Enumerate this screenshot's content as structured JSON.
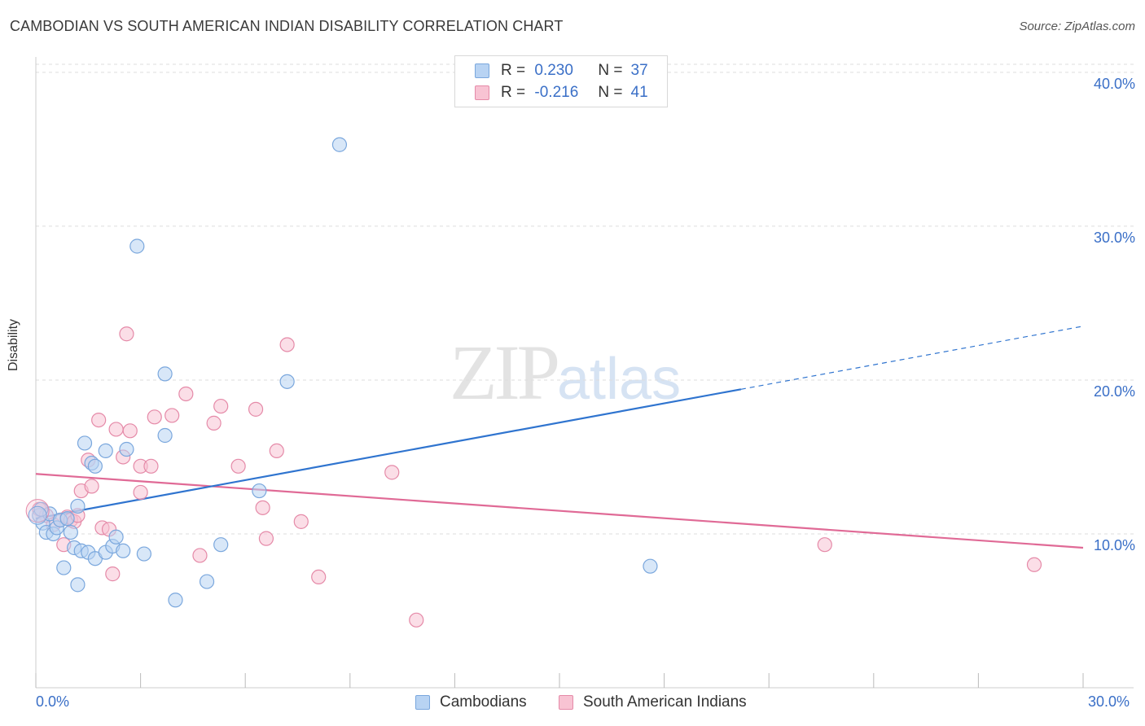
{
  "title": "CAMBODIAN VS SOUTH AMERICAN INDIAN DISABILITY CORRELATION CHART",
  "source": "Source: ZipAtlas.com",
  "watermark": {
    "zip": "ZIP",
    "atlas": "atlas"
  },
  "colors": {
    "blue_fill": "#b8d3f3",
    "blue_stroke": "#7aa7dd",
    "blue_line": "#2f74cf",
    "pink_fill": "#f8c3d3",
    "pink_stroke": "#e58aa8",
    "pink_line": "#e06a96",
    "tick_text": "#3a6fc7",
    "grid": "#dddddd"
  },
  "legend": {
    "rows": [
      {
        "r_label": "R =",
        "r_value": "0.230",
        "n_label": "N =",
        "n_value": "37"
      },
      {
        "r_label": "R =",
        "r_value": "-0.216",
        "n_label": "N =",
        "n_value": "41"
      }
    ]
  },
  "chart_data": {
    "type": "scatter",
    "title": "CAMBODIAN VS SOUTH AMERICAN INDIAN DISABILITY CORRELATION CHART",
    "xlabel": "",
    "ylabel": "Disability",
    "xlim": [
      0,
      30
    ],
    "ylim": [
      0,
      41
    ],
    "x_tick_labels": [
      "0.0%",
      "30.0%"
    ],
    "y_ticks": [
      10,
      20,
      30,
      40
    ],
    "y_tick_labels": [
      "10.0%",
      "20.0%",
      "30.0%",
      "40.0%"
    ],
    "series": [
      {
        "name": "Cambodians",
        "R": 0.23,
        "N": 37,
        "trend": {
          "x0": 0,
          "y0": 11.0,
          "x1": 20.2,
          "y1": 19.4,
          "dash_to_x": 30,
          "dash_to_y": 23.5
        },
        "points": [
          [
            0.1,
            11.2
          ],
          [
            0.2,
            10.7
          ],
          [
            0.3,
            10.1
          ],
          [
            0.4,
            11.3
          ],
          [
            0.5,
            10.0
          ],
          [
            0.6,
            10.4
          ],
          [
            0.7,
            10.9
          ],
          [
            0.8,
            7.8
          ],
          [
            0.9,
            11.0
          ],
          [
            1.0,
            10.1
          ],
          [
            1.1,
            9.1
          ],
          [
            1.2,
            11.8
          ],
          [
            1.2,
            6.7
          ],
          [
            1.3,
            8.9
          ],
          [
            1.4,
            15.9
          ],
          [
            1.5,
            8.8
          ],
          [
            1.6,
            14.6
          ],
          [
            1.7,
            8.4
          ],
          [
            1.7,
            14.4
          ],
          [
            2.0,
            8.8
          ],
          [
            2.0,
            15.4
          ],
          [
            2.2,
            9.2
          ],
          [
            2.3,
            9.8
          ],
          [
            2.5,
            8.9
          ],
          [
            2.6,
            15.5
          ],
          [
            2.9,
            28.7
          ],
          [
            3.1,
            8.7
          ],
          [
            3.7,
            20.4
          ],
          [
            3.7,
            16.4
          ],
          [
            4.0,
            5.7
          ],
          [
            4.9,
            6.9
          ],
          [
            5.3,
            9.3
          ],
          [
            6.4,
            12.8
          ],
          [
            7.2,
            19.9
          ],
          [
            8.7,
            35.3
          ],
          [
            17.6,
            7.9
          ],
          [
            0.15,
            11.6
          ]
        ]
      },
      {
        "name": "South American Indians",
        "R": -0.216,
        "N": 41,
        "trend": {
          "x0": 0,
          "y0": 13.9,
          "x1": 30,
          "y1": 9.1
        },
        "points": [
          [
            0.1,
            11.6
          ],
          [
            0.3,
            11.2
          ],
          [
            0.5,
            10.6
          ],
          [
            0.7,
            10.9
          ],
          [
            0.8,
            9.3
          ],
          [
            0.9,
            11.1
          ],
          [
            1.0,
            10.9
          ],
          [
            1.1,
            10.8
          ],
          [
            1.2,
            11.2
          ],
          [
            1.3,
            12.8
          ],
          [
            1.5,
            14.8
          ],
          [
            1.6,
            13.1
          ],
          [
            1.8,
            17.4
          ],
          [
            1.9,
            10.4
          ],
          [
            2.1,
            10.3
          ],
          [
            2.2,
            7.4
          ],
          [
            2.3,
            16.8
          ],
          [
            2.5,
            15.0
          ],
          [
            2.6,
            23.0
          ],
          [
            2.7,
            16.7
          ],
          [
            3.0,
            12.7
          ],
          [
            3.0,
            14.4
          ],
          [
            3.3,
            14.4
          ],
          [
            3.4,
            17.6
          ],
          [
            3.9,
            17.7
          ],
          [
            4.3,
            19.1
          ],
          [
            4.7,
            8.6
          ],
          [
            5.1,
            17.2
          ],
          [
            5.3,
            18.3
          ],
          [
            5.8,
            14.4
          ],
          [
            6.3,
            18.1
          ],
          [
            6.5,
            11.7
          ],
          [
            6.6,
            9.7
          ],
          [
            6.9,
            15.4
          ],
          [
            7.2,
            22.3
          ],
          [
            7.6,
            10.8
          ],
          [
            8.1,
            7.2
          ],
          [
            10.2,
            14.0
          ],
          [
            10.9,
            4.4
          ],
          [
            22.6,
            9.3
          ],
          [
            28.6,
            8.0
          ]
        ]
      }
    ]
  },
  "bottom_legend": {
    "cambodians": "Cambodians",
    "south_american_indians": "South American Indians"
  }
}
